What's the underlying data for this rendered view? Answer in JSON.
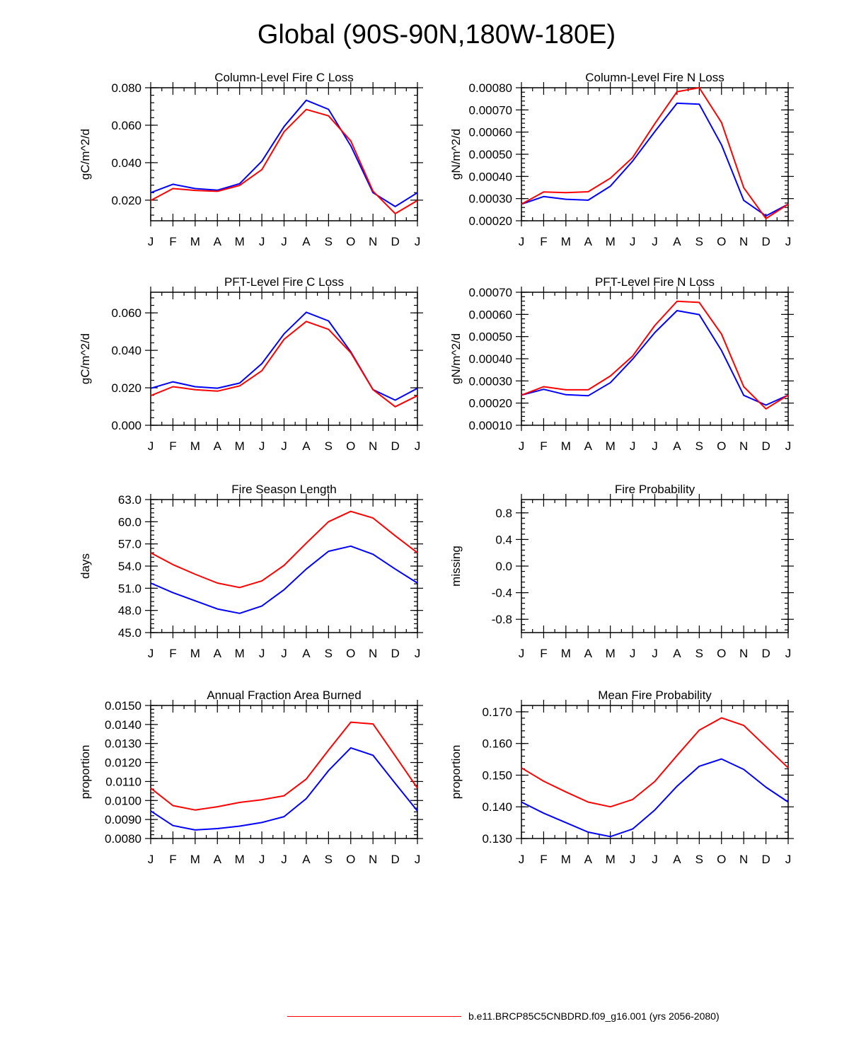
{
  "page_title": "Global (90S-90N,180W-180E)",
  "colors": {
    "case": "#ff0000",
    "control": "#0000ff",
    "axis": "#000000"
  },
  "legend": {
    "label": "b.e11.BRCP85C5CNBDRD.f09_g16.001 (yrs 2056-2080)",
    "color": "#ff0000"
  },
  "chart_data": [
    {
      "type": "line",
      "title": "Column-Level Fire C Loss",
      "ylabel": "gC/m^2/d",
      "xlabel": "",
      "categories": [
        "J",
        "F",
        "M",
        "A",
        "M",
        "J",
        "J",
        "A",
        "S",
        "O",
        "N",
        "D",
        "J"
      ],
      "ylim": [
        0.009,
        0.08
      ],
      "yticks": [
        "0.020",
        "0.040",
        "0.060",
        "0.080"
      ],
      "series": [
        {
          "name": "case",
          "color": "#ff0000",
          "values": [
            0.0198,
            0.0262,
            0.0252,
            0.0247,
            0.0279,
            0.0363,
            0.0565,
            0.0684,
            0.065,
            0.0516,
            0.0248,
            0.0128,
            0.0198
          ]
        },
        {
          "name": "control",
          "color": "#0000ff",
          "values": [
            0.024,
            0.0285,
            0.0262,
            0.0253,
            0.0288,
            0.0408,
            0.0593,
            0.0733,
            0.0685,
            0.049,
            0.024,
            0.0166,
            0.024
          ]
        }
      ]
    },
    {
      "type": "line",
      "title": "Column-Level Fire N Loss",
      "ylabel": "gN/m^2/d",
      "xlabel": "",
      "categories": [
        "J",
        "F",
        "M",
        "A",
        "M",
        "J",
        "J",
        "A",
        "S",
        "O",
        "N",
        "D",
        "J"
      ],
      "ylim": [
        0.0002,
        0.0008
      ],
      "yticks": [
        "0.00020",
        "0.00030",
        "0.00040",
        "0.00050",
        "0.00060",
        "0.00070",
        "0.00080"
      ],
      "series": [
        {
          "name": "case",
          "color": "#ff0000",
          "values": [
            0.000275,
            0.00033,
            0.000327,
            0.000331,
            0.000392,
            0.000485,
            0.000638,
            0.000782,
            0.0008,
            0.000643,
            0.000349,
            0.00021,
            0.000275
          ]
        },
        {
          "name": "control",
          "color": "#0000ff",
          "values": [
            0.000275,
            0.000309,
            0.000297,
            0.000293,
            0.000356,
            0.000469,
            0.000602,
            0.00073,
            0.000726,
            0.000542,
            0.000292,
            0.000222,
            0.000275
          ]
        }
      ]
    },
    {
      "type": "line",
      "title": "PFT-Level Fire C Loss",
      "ylabel": "gC/m^2/d",
      "xlabel": "",
      "categories": [
        "J",
        "F",
        "M",
        "A",
        "M",
        "J",
        "J",
        "A",
        "S",
        "O",
        "N",
        "D",
        "J"
      ],
      "ylim": [
        0.0,
        0.071
      ],
      "yticks": [
        "0.000",
        "0.020",
        "0.040",
        "0.060"
      ],
      "series": [
        {
          "name": "case",
          "color": "#ff0000",
          "values": [
            0.0158,
            0.0206,
            0.019,
            0.0182,
            0.021,
            0.0291,
            0.0459,
            0.0554,
            0.0512,
            0.0387,
            0.019,
            0.0099,
            0.0158
          ]
        },
        {
          "name": "control",
          "color": "#0000ff",
          "values": [
            0.0197,
            0.0232,
            0.0206,
            0.0198,
            0.0225,
            0.0329,
            0.0488,
            0.0603,
            0.0557,
            0.0392,
            0.019,
            0.0134,
            0.0197
          ]
        }
      ]
    },
    {
      "type": "line",
      "title": "PFT-Level Fire N Loss",
      "ylabel": "gN/m^2/d",
      "xlabel": "",
      "categories": [
        "J",
        "F",
        "M",
        "A",
        "M",
        "J",
        "J",
        "A",
        "S",
        "O",
        "N",
        "D",
        "J"
      ],
      "ylim": [
        0.0001,
        0.0007
      ],
      "yticks": [
        "0.00010",
        "0.00020",
        "0.00030",
        "0.00040",
        "0.00050",
        "0.00060",
        "0.00070"
      ],
      "series": [
        {
          "name": "case",
          "color": "#ff0000",
          "values": [
            0.000236,
            0.000274,
            0.00026,
            0.00026,
            0.000322,
            0.000412,
            0.00055,
            0.000659,
            0.000654,
            0.000511,
            0.000274,
            0.000174,
            0.000236
          ]
        },
        {
          "name": "control",
          "color": "#0000ff",
          "values": [
            0.000236,
            0.000262,
            0.000238,
            0.000233,
            0.000292,
            0.000398,
            0.000518,
            0.000617,
            0.000599,
            0.000437,
            0.000235,
            0.000191,
            0.000236
          ]
        }
      ]
    },
    {
      "type": "line",
      "title": "Fire Season Length",
      "ylabel": "days",
      "xlabel": "",
      "categories": [
        "J",
        "F",
        "M",
        "A",
        "M",
        "J",
        "J",
        "A",
        "S",
        "O",
        "N",
        "D",
        "J"
      ],
      "ylim": [
        45.0,
        63.0
      ],
      "yticks": [
        "45.0",
        "48.0",
        "51.0",
        "54.0",
        "57.0",
        "60.0",
        "63.0"
      ],
      "series": [
        {
          "name": "case",
          "color": "#ff0000",
          "values": [
            55.8,
            54.2,
            52.9,
            51.7,
            51.1,
            52.0,
            54.1,
            57.1,
            60.0,
            61.4,
            60.5,
            58.1,
            55.8
          ]
        },
        {
          "name": "control",
          "color": "#0000ff",
          "values": [
            51.7,
            50.4,
            49.3,
            48.2,
            47.6,
            48.6,
            50.8,
            53.6,
            56.0,
            56.7,
            55.6,
            53.6,
            51.7
          ]
        }
      ]
    },
    {
      "type": "line",
      "title": "Fire Probability",
      "ylabel": "missing",
      "xlabel": "",
      "categories": [
        "J",
        "F",
        "M",
        "A",
        "M",
        "J",
        "J",
        "A",
        "S",
        "O",
        "N",
        "D",
        "J"
      ],
      "ylim": [
        -1.0,
        1.0
      ],
      "yticks": [
        "-0.8",
        "-0.4",
        "0.0",
        "0.4",
        "0.8"
      ],
      "series": []
    },
    {
      "type": "line",
      "title": "Annual Fraction Area Burned",
      "ylabel": "proportion",
      "xlabel": "",
      "categories": [
        "J",
        "F",
        "M",
        "A",
        "M",
        "J",
        "J",
        "A",
        "S",
        "O",
        "N",
        "D",
        "J"
      ],
      "ylim": [
        0.008,
        0.015
      ],
      "yticks": [
        "0.0080",
        "0.0090",
        "0.0100",
        "0.0110",
        "0.0120",
        "0.0130",
        "0.0140",
        "0.0150"
      ],
      "series": [
        {
          "name": "case",
          "color": "#ff0000",
          "values": [
            0.01065,
            0.00973,
            0.0095,
            0.00967,
            0.0099,
            0.01004,
            0.01025,
            0.01113,
            0.01265,
            0.01412,
            0.01403,
            0.01235,
            0.01065
          ]
        },
        {
          "name": "control",
          "color": "#0000ff",
          "values": [
            0.00945,
            0.00868,
            0.00845,
            0.00852,
            0.00865,
            0.00884,
            0.00915,
            0.0101,
            0.01157,
            0.01277,
            0.01238,
            0.0109,
            0.00945
          ]
        }
      ]
    },
    {
      "type": "line",
      "title": "Mean Fire Probability",
      "ylabel": "proportion",
      "xlabel": "",
      "categories": [
        "J",
        "F",
        "M",
        "A",
        "M",
        "J",
        "J",
        "A",
        "S",
        "O",
        "N",
        "D",
        "J"
      ],
      "ylim": [
        0.13,
        0.172
      ],
      "yticks": [
        "0.130",
        "0.140",
        "0.150",
        "0.160",
        "0.170"
      ],
      "series": [
        {
          "name": "case",
          "color": "#ff0000",
          "values": [
            0.1523,
            0.1481,
            0.1447,
            0.1415,
            0.14,
            0.1423,
            0.148,
            0.1562,
            0.1642,
            0.1681,
            0.1657,
            0.159,
            0.1523
          ]
        },
        {
          "name": "control",
          "color": "#0000ff",
          "values": [
            0.1415,
            0.138,
            0.135,
            0.132,
            0.1306,
            0.133,
            0.139,
            0.1465,
            0.1528,
            0.1551,
            0.1518,
            0.1462,
            0.1415
          ]
        }
      ]
    }
  ]
}
